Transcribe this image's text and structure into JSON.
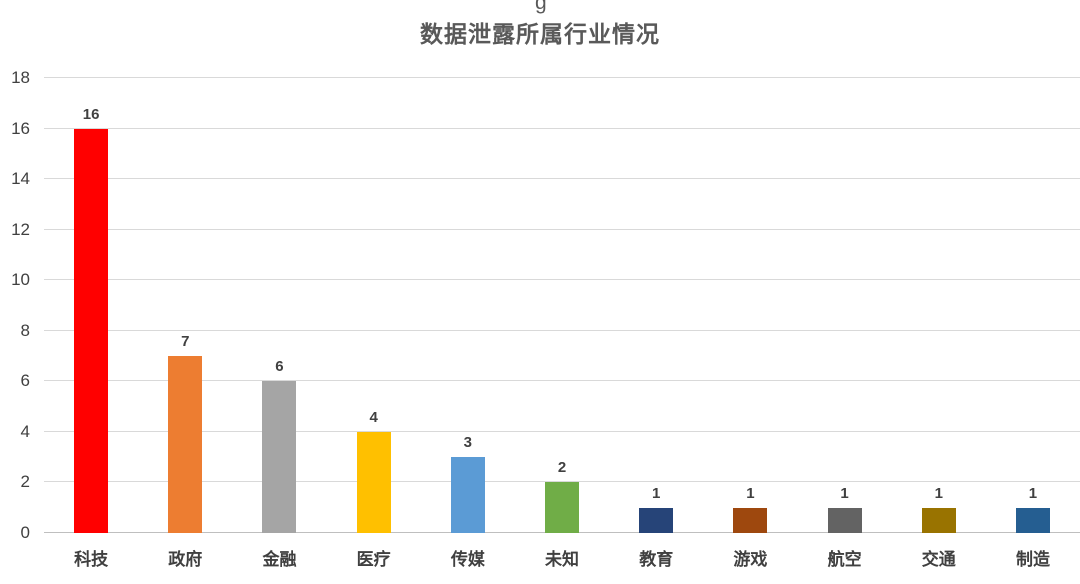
{
  "page": {
    "header_fragment": "g"
  },
  "chart_data": {
    "type": "bar",
    "title": "数据泄露所属行业情况",
    "categories": [
      "科技",
      "政府",
      "金融",
      "医疗",
      "传媒",
      "未知",
      "教育",
      "游戏",
      "航空",
      "交通",
      "制造"
    ],
    "values": [
      16,
      7,
      6,
      4,
      3,
      2,
      1,
      1,
      1,
      1,
      1
    ],
    "bar_colors": [
      "#FF0000",
      "#ED7D31",
      "#A5A5A5",
      "#FFC000",
      "#5B9BD5",
      "#70AD47",
      "#264478",
      "#9E480E",
      "#636363",
      "#997300",
      "#255E91"
    ],
    "xlabel": "",
    "ylabel": "",
    "ylim": [
      0,
      18
    ],
    "ytick_step": 2,
    "grid": true,
    "legend": "none",
    "data_labels": true,
    "colors": {
      "title": "#595959",
      "axis_text": "#404040",
      "gridline": "#D9D9D9",
      "axis_line": "#BFBFBF",
      "background": "#FFFFFF"
    }
  }
}
